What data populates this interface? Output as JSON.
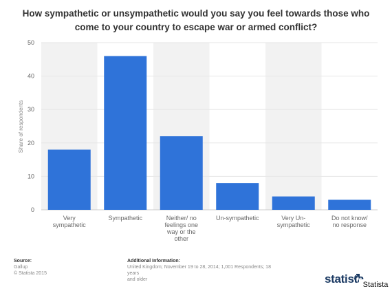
{
  "chart_data": {
    "type": "bar",
    "title": "How sympathetic or unsympathetic would you say you feel towards those who come to your country to escape war or armed conflict?",
    "categories": [
      [
        "Very",
        "sympathetic"
      ],
      [
        "Sympathetic"
      ],
      [
        "Neither/ no",
        "feelings one",
        "way or the",
        "other"
      ],
      [
        "Un-sympathetic"
      ],
      [
        "Very Un-",
        "sympathetic"
      ],
      [
        "Do not know/",
        "no response"
      ]
    ],
    "values": [
      18,
      46,
      22,
      8,
      4,
      3
    ],
    "ylabel": "Share of respondents",
    "ylim": [
      0,
      50
    ],
    "yticks": [
      0,
      10,
      20,
      30,
      40,
      50
    ],
    "grid": true,
    "bar_color": "#2f73d9"
  },
  "footer": {
    "source_label": "Source:",
    "source_name": "Gallup",
    "copyright": "© Statista 2015",
    "additional_label": "Additional Information:",
    "additional_text_1": "United Kingdom; November 19 to 28, 2014; 1,001 Respondents; 18 years",
    "additional_text_2": "and older"
  },
  "brand": {
    "logo": "statista",
    "watermark": "Statista",
    "color": "#1b3a63"
  }
}
